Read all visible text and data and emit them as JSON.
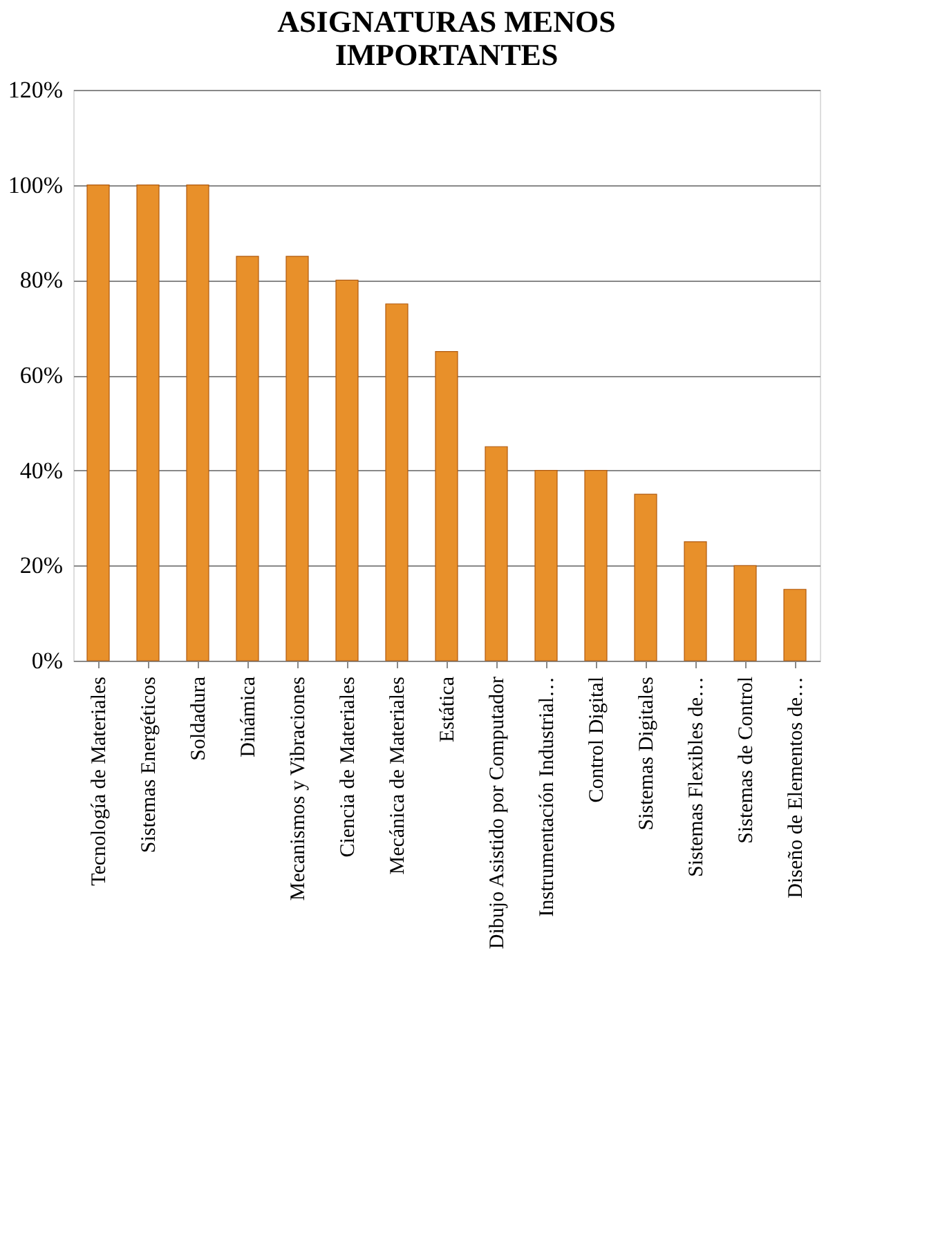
{
  "chart_data": {
    "type": "bar",
    "title": [
      "ASIGNATURAS MENOS",
      "IMPORTANTES"
    ],
    "categories": [
      "Tecnología de Materiales",
      "Sistemas Energéticos",
      "Soldadura",
      "Dinámica",
      "Mecanismos y Vibraciones",
      "Ciencia de Materiales",
      "Mecánica de Materiales",
      "Estática",
      "Dibujo Asistido por Computador",
      "Instrumentación Industrial…",
      "Control Digital",
      "Sistemas Digitales",
      "Sistemas Flexibles de…",
      "Sistemas de Control",
      "Diseño de Elementos de…"
    ],
    "values": [
      100,
      100,
      100,
      85,
      85,
      80,
      75,
      65,
      45,
      40,
      40,
      35,
      25,
      20,
      15
    ],
    "color": "#e8902a",
    "ylim": [
      0,
      120
    ],
    "yticks": [
      {
        "value": 0,
        "label": "0%"
      },
      {
        "value": 20,
        "label": "20%"
      },
      {
        "value": 40,
        "label": "40%"
      },
      {
        "value": 60,
        "label": "60%"
      },
      {
        "value": 80,
        "label": "80%"
      },
      {
        "value": 100,
        "label": "100%"
      },
      {
        "value": 120,
        "label": "120%"
      }
    ],
    "grid": "y"
  }
}
